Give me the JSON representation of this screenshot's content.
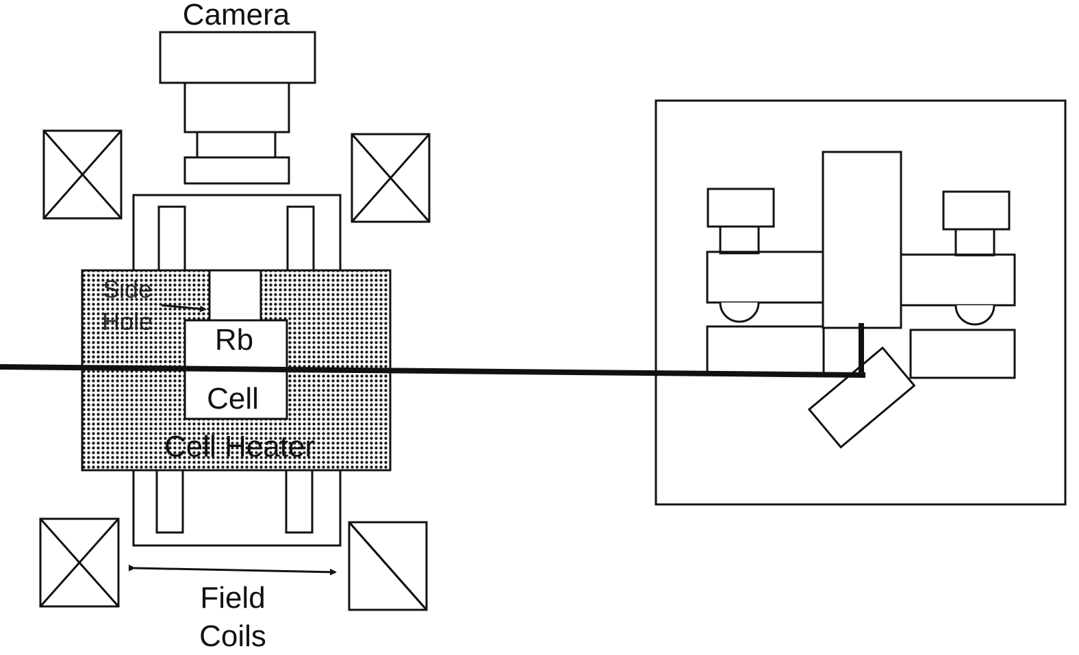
{
  "labels": {
    "camera": "Camera",
    "side": "Side",
    "hole": "Hole",
    "rb": "Rb",
    "cell": "Cell",
    "cell_heater": "Cell Heater",
    "field": "Field",
    "coils": "Coils"
  },
  "colors": {
    "stroke": "#111111",
    "background": "#ffffff",
    "heater_dot": "#1a1a1a"
  },
  "icons": {
    "field_coil": "crossed-box"
  }
}
